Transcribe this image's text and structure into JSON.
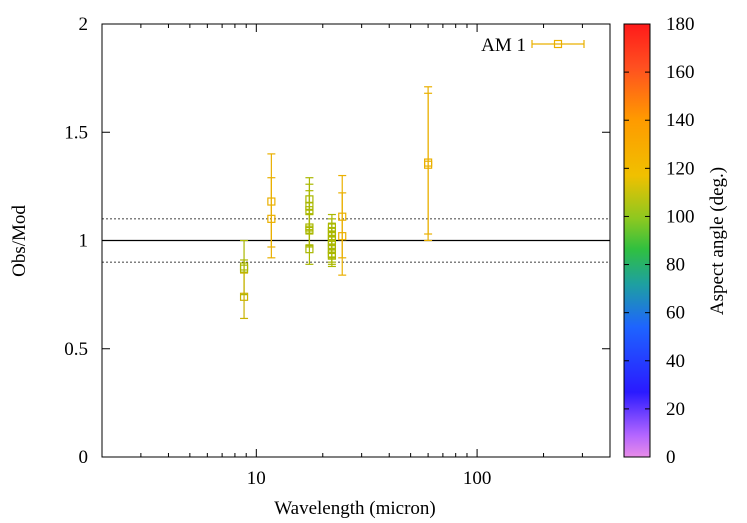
{
  "chart_data": {
    "type": "scatter",
    "xlabel": "Wavelength (micron)",
    "ylabel": "Obs/Mod",
    "x_scale": "log",
    "xlim": [
      2,
      400
    ],
    "ylim": [
      0,
      2
    ],
    "x_ticks": [
      {
        "value": 10,
        "label": "10"
      },
      {
        "value": 100,
        "label": "100"
      }
    ],
    "y_ticks": [
      {
        "value": 0,
        "label": "0"
      },
      {
        "value": 0.5,
        "label": "0.5"
      },
      {
        "value": 1,
        "label": "1"
      },
      {
        "value": 1.5,
        "label": "1.5"
      },
      {
        "value": 2,
        "label": "2"
      }
    ],
    "reference_lines": [
      {
        "y": 1.0,
        "style": "solid"
      },
      {
        "y": 1.1,
        "style": "dotted"
      },
      {
        "y": 0.9,
        "style": "dotted"
      }
    ],
    "legend": {
      "placement": "top-right",
      "entries": [
        {
          "name": "AM 1",
          "color": "#eab000"
        }
      ]
    },
    "colorbar": {
      "label": "Aspect angle (deg.)",
      "range": [
        0,
        180
      ],
      "ticks": [
        "0",
        "20",
        "40",
        "60",
        "80",
        "100",
        "120",
        "140",
        "160",
        "180"
      ]
    },
    "series": [
      {
        "name": "AM 1",
        "points": [
          {
            "x": 8.8,
            "y": 0.87,
            "ylo": 0.75,
            "yhi": 1.0,
            "color": "#aab800"
          },
          {
            "x": 8.8,
            "y": 0.88,
            "ylo": 0.85,
            "yhi": 0.91,
            "color": "#aab800"
          },
          {
            "x": 8.8,
            "y": 0.74,
            "ylo": 0.64,
            "yhi": 0.85,
            "color": "#c8b200"
          },
          {
            "x": 11.7,
            "y": 1.18,
            "ylo": 0.97,
            "yhi": 1.4,
            "color": "#eab000"
          },
          {
            "x": 11.7,
            "y": 1.1,
            "ylo": 0.92,
            "yhi": 1.29,
            "color": "#eab000"
          },
          {
            "x": 17.4,
            "y": 1.16,
            "ylo": 1.03,
            "yhi": 1.29,
            "color": "#aab800"
          },
          {
            "x": 17.4,
            "y": 1.19,
            "ylo": 1.12,
            "yhi": 1.26,
            "color": "#aab800"
          },
          {
            "x": 17.4,
            "y": 1.14,
            "ylo": 1.06,
            "yhi": 1.23,
            "color": "#aab800"
          },
          {
            "x": 17.4,
            "y": 1.06,
            "ylo": 0.98,
            "yhi": 1.14,
            "color": "#aab800"
          },
          {
            "x": 17.4,
            "y": 1.05,
            "ylo": 0.97,
            "yhi": 1.12,
            "color": "#aab800"
          },
          {
            "x": 17.4,
            "y": 0.96,
            "ylo": 0.89,
            "yhi": 1.05,
            "color": "#aab800"
          },
          {
            "x": 22.0,
            "y": 1.06,
            "ylo": 1.0,
            "yhi": 1.12,
            "color": "#aab800"
          },
          {
            "x": 22.0,
            "y": 1.04,
            "ylo": 0.98,
            "yhi": 1.1,
            "color": "#aab800"
          },
          {
            "x": 22.0,
            "y": 1.02,
            "ylo": 0.96,
            "yhi": 1.08,
            "color": "#aab800"
          },
          {
            "x": 22.0,
            "y": 1.0,
            "ylo": 0.94,
            "yhi": 1.06,
            "color": "#aab800"
          },
          {
            "x": 22.0,
            "y": 0.98,
            "ylo": 0.92,
            "yhi": 1.04,
            "color": "#aab800"
          },
          {
            "x": 22.0,
            "y": 0.96,
            "ylo": 0.9,
            "yhi": 1.02,
            "color": "#aab800"
          },
          {
            "x": 22.0,
            "y": 0.94,
            "ylo": 0.89,
            "yhi": 1.0,
            "color": "#aab800"
          },
          {
            "x": 22.0,
            "y": 0.93,
            "ylo": 0.88,
            "yhi": 0.98,
            "color": "#aab800"
          },
          {
            "x": 24.5,
            "y": 1.11,
            "ylo": 0.92,
            "yhi": 1.3,
            "color": "#eab000"
          },
          {
            "x": 24.5,
            "y": 1.02,
            "ylo": 0.84,
            "yhi": 1.22,
            "color": "#eab000"
          },
          {
            "x": 60,
            "y": 1.36,
            "ylo": 1.0,
            "yhi": 1.71,
            "color": "#eab000"
          },
          {
            "x": 60,
            "y": 1.35,
            "ylo": 1.03,
            "yhi": 1.68,
            "color": "#eab000"
          }
        ]
      }
    ]
  }
}
